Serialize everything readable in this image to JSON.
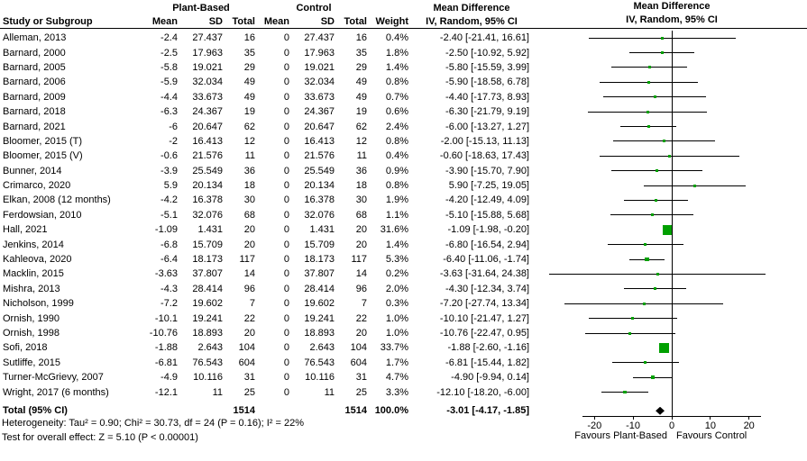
{
  "header": {
    "study_col": "Study or Subgroup",
    "groups": {
      "treatment": "Plant-Based",
      "control": "Control"
    },
    "cols": {
      "mean": "Mean",
      "sd": "SD",
      "total": "Total",
      "weight": "Weight"
    },
    "md_title": "Mean Difference",
    "md_subtitle": "IV, Random, 95% CI"
  },
  "chart_data": {
    "type": "forest",
    "marker_color": "#00a000",
    "diamond_color": "#000000",
    "axis": {
      "ticks": [
        -20,
        -10,
        0,
        10,
        20
      ],
      "xlim": [
        -35,
        35
      ],
      "favours_left": "Favours Plant-Based",
      "favours_right": "Favours Control"
    },
    "studies": [
      {
        "name": "Alleman, 2013",
        "mean1": "-2.4",
        "sd1": "27.437",
        "n1": "16",
        "mean2": "0",
        "sd2": "27.437",
        "n2": "16",
        "weight": "0.4%",
        "w": 0.4,
        "ci": "-2.40 [-21.41, 16.61]",
        "md": -2.4,
        "lo": -21.41,
        "hi": 16.61
      },
      {
        "name": "Barnard, 2000",
        "mean1": "-2.5",
        "sd1": "17.963",
        "n1": "35",
        "mean2": "0",
        "sd2": "17.963",
        "n2": "35",
        "weight": "1.8%",
        "w": 1.8,
        "ci": "-2.50 [-10.92, 5.92]",
        "md": -2.5,
        "lo": -10.92,
        "hi": 5.92
      },
      {
        "name": "Barnard, 2005",
        "mean1": "-5.8",
        "sd1": "19.021",
        "n1": "29",
        "mean2": "0",
        "sd2": "19.021",
        "n2": "29",
        "weight": "1.4%",
        "w": 1.4,
        "ci": "-5.80 [-15.59, 3.99]",
        "md": -5.8,
        "lo": -15.59,
        "hi": 3.99
      },
      {
        "name": "Barnard, 2006",
        "mean1": "-5.9",
        "sd1": "32.034",
        "n1": "49",
        "mean2": "0",
        "sd2": "32.034",
        "n2": "49",
        "weight": "0.8%",
        "w": 0.8,
        "ci": "-5.90 [-18.58, 6.78]",
        "md": -5.9,
        "lo": -18.58,
        "hi": 6.78
      },
      {
        "name": "Barnard, 2009",
        "mean1": "-4.4",
        "sd1": "33.673",
        "n1": "49",
        "mean2": "0",
        "sd2": "33.673",
        "n2": "49",
        "weight": "0.7%",
        "w": 0.7,
        "ci": "-4.40 [-17.73, 8.93]",
        "md": -4.4,
        "lo": -17.73,
        "hi": 8.93
      },
      {
        "name": "Barnard, 2018",
        "mean1": "-6.3",
        "sd1": "24.367",
        "n1": "19",
        "mean2": "0",
        "sd2": "24.367",
        "n2": "19",
        "weight": "0.6%",
        "w": 0.6,
        "ci": "-6.30 [-21.79, 9.19]",
        "md": -6.3,
        "lo": -21.79,
        "hi": 9.19
      },
      {
        "name": "Barnard, 2021",
        "mean1": "-6",
        "sd1": "20.647",
        "n1": "62",
        "mean2": "0",
        "sd2": "20.647",
        "n2": "62",
        "weight": "2.4%",
        "w": 2.4,
        "ci": "-6.00 [-13.27, 1.27]",
        "md": -6.0,
        "lo": -13.27,
        "hi": 1.27
      },
      {
        "name": "Bloomer, 2015 (T)",
        "mean1": "-2",
        "sd1": "16.413",
        "n1": "12",
        "mean2": "0",
        "sd2": "16.413",
        "n2": "12",
        "weight": "0.8%",
        "w": 0.8,
        "ci": "-2.00 [-15.13, 11.13]",
        "md": -2.0,
        "lo": -15.13,
        "hi": 11.13
      },
      {
        "name": "Bloomer, 2015 (V)",
        "mean1": "-0.6",
        "sd1": "21.576",
        "n1": "11",
        "mean2": "0",
        "sd2": "21.576",
        "n2": "11",
        "weight": "0.4%",
        "w": 0.4,
        "ci": "-0.60 [-18.63, 17.43]",
        "md": -0.6,
        "lo": -18.63,
        "hi": 17.43
      },
      {
        "name": "Bunner, 2014",
        "mean1": "-3.9",
        "sd1": "25.549",
        "n1": "36",
        "mean2": "0",
        "sd2": "25.549",
        "n2": "36",
        "weight": "0.9%",
        "w": 0.9,
        "ci": "-3.90 [-15.70, 7.90]",
        "md": -3.9,
        "lo": -15.7,
        "hi": 7.9
      },
      {
        "name": "Crimarco, 2020",
        "mean1": "5.9",
        "sd1": "20.134",
        "n1": "18",
        "mean2": "0",
        "sd2": "20.134",
        "n2": "18",
        "weight": "0.8%",
        "w": 0.8,
        "ci": "5.90 [-7.25, 19.05]",
        "md": 5.9,
        "lo": -7.25,
        "hi": 19.05
      },
      {
        "name": "Elkan, 2008 (12 months)",
        "mean1": "-4.2",
        "sd1": "16.378",
        "n1": "30",
        "mean2": "0",
        "sd2": "16.378",
        "n2": "30",
        "weight": "1.9%",
        "w": 1.9,
        "ci": "-4.20 [-12.49, 4.09]",
        "md": -4.2,
        "lo": -12.49,
        "hi": 4.09
      },
      {
        "name": "Ferdowsian, 2010",
        "mean1": "-5.1",
        "sd1": "32.076",
        "n1": "68",
        "mean2": "0",
        "sd2": "32.076",
        "n2": "68",
        "weight": "1.1%",
        "w": 1.1,
        "ci": "-5.10 [-15.88, 5.68]",
        "md": -5.1,
        "lo": -15.88,
        "hi": 5.68
      },
      {
        "name": "Hall, 2021",
        "mean1": "-1.09",
        "sd1": "1.431",
        "n1": "20",
        "mean2": "0",
        "sd2": "1.431",
        "n2": "20",
        "weight": "31.6%",
        "w": 31.6,
        "ci": "-1.09 [-1.98, -0.20]",
        "md": -1.09,
        "lo": -1.98,
        "hi": -0.2
      },
      {
        "name": "Jenkins, 2014",
        "mean1": "-6.8",
        "sd1": "15.709",
        "n1": "20",
        "mean2": "0",
        "sd2": "15.709",
        "n2": "20",
        "weight": "1.4%",
        "w": 1.4,
        "ci": "-6.80 [-16.54, 2.94]",
        "md": -6.8,
        "lo": -16.54,
        "hi": 2.94
      },
      {
        "name": "Kahleova, 2020",
        "mean1": "-6.4",
        "sd1": "18.173",
        "n1": "117",
        "mean2": "0",
        "sd2": "18.173",
        "n2": "117",
        "weight": "5.3%",
        "w": 5.3,
        "ci": "-6.40 [-11.06, -1.74]",
        "md": -6.4,
        "lo": -11.06,
        "hi": -1.74
      },
      {
        "name": "Macklin, 2015",
        "mean1": "-3.63",
        "sd1": "37.807",
        "n1": "14",
        "mean2": "0",
        "sd2": "37.807",
        "n2": "14",
        "weight": "0.2%",
        "w": 0.2,
        "ci": "-3.63 [-31.64, 24.38]",
        "md": -3.63,
        "lo": -31.64,
        "hi": 24.38
      },
      {
        "name": "Mishra, 2013",
        "mean1": "-4.3",
        "sd1": "28.414",
        "n1": "96",
        "mean2": "0",
        "sd2": "28.414",
        "n2": "96",
        "weight": "2.0%",
        "w": 2.0,
        "ci": "-4.30 [-12.34, 3.74]",
        "md": -4.3,
        "lo": -12.34,
        "hi": 3.74
      },
      {
        "name": "Nicholson, 1999",
        "mean1": "-7.2",
        "sd1": "19.602",
        "n1": "7",
        "mean2": "0",
        "sd2": "19.602",
        "n2": "7",
        "weight": "0.3%",
        "w": 0.3,
        "ci": "-7.20 [-27.74, 13.34]",
        "md": -7.2,
        "lo": -27.74,
        "hi": 13.34
      },
      {
        "name": "Ornish, 1990",
        "mean1": "-10.1",
        "sd1": "19.241",
        "n1": "22",
        "mean2": "0",
        "sd2": "19.241",
        "n2": "22",
        "weight": "1.0%",
        "w": 1.0,
        "ci": "-10.10 [-21.47, 1.27]",
        "md": -10.1,
        "lo": -21.47,
        "hi": 1.27
      },
      {
        "name": "Ornish, 1998",
        "mean1": "-10.76",
        "sd1": "18.893",
        "n1": "20",
        "mean2": "0",
        "sd2": "18.893",
        "n2": "20",
        "weight": "1.0%",
        "w": 1.0,
        "ci": "-10.76 [-22.47, 0.95]",
        "md": -10.76,
        "lo": -22.47,
        "hi": 0.95
      },
      {
        "name": "Sofi, 2018",
        "mean1": "-1.88",
        "sd1": "2.643",
        "n1": "104",
        "mean2": "0",
        "sd2": "2.643",
        "n2": "104",
        "weight": "33.7%",
        "w": 33.7,
        "ci": "-1.88 [-2.60, -1.16]",
        "md": -1.88,
        "lo": -2.6,
        "hi": -1.16
      },
      {
        "name": "Sutliffe, 2015",
        "mean1": "-6.81",
        "sd1": "76.543",
        "n1": "604",
        "mean2": "0",
        "sd2": "76.543",
        "n2": "604",
        "weight": "1.7%",
        "w": 1.7,
        "ci": "-6.81 [-15.44, 1.82]",
        "md": -6.81,
        "lo": -15.44,
        "hi": 1.82
      },
      {
        "name": "Turner-McGrievy, 2007",
        "mean1": "-4.9",
        "sd1": "10.116",
        "n1": "31",
        "mean2": "0",
        "sd2": "10.116",
        "n2": "31",
        "weight": "4.7%",
        "w": 4.7,
        "ci": "-4.90 [-9.94, 0.14]",
        "md": -4.9,
        "lo": -9.94,
        "hi": 0.14
      },
      {
        "name": "Wright, 2017 (6 months)",
        "mean1": "-12.1",
        "sd1": "11",
        "n1": "25",
        "mean2": "0",
        "sd2": "11",
        "n2": "25",
        "weight": "3.3%",
        "w": 3.3,
        "ci": "-12.10 [-18.20, -6.00]",
        "md": -12.1,
        "lo": -18.2,
        "hi": -6.0
      }
    ],
    "total": {
      "label": "Total (95% CI)",
      "n1": "1514",
      "n2": "1514",
      "weight": "100.0%",
      "ci": "-3.01 [-4.17, -1.85]",
      "md": -3.01,
      "lo": -4.17,
      "hi": -1.85
    },
    "footnotes": [
      "Heterogeneity: Tau² = 0.90; Chi² = 30.73, df = 24 (P = 0.16); I² = 22%",
      "Test for overall effect: Z = 5.10 (P < 0.00001)"
    ]
  }
}
